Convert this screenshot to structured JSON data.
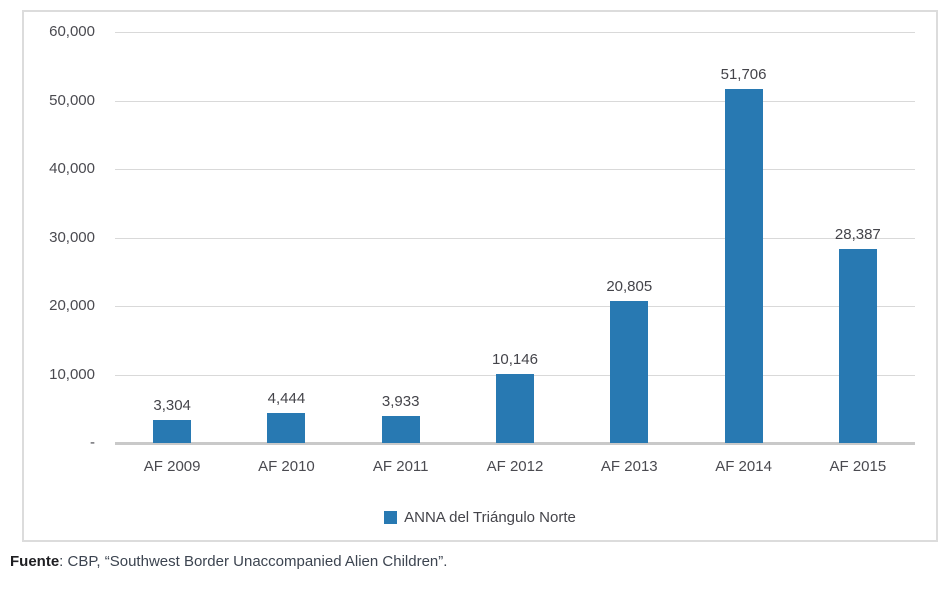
{
  "chart_data": {
    "type": "bar",
    "categories": [
      "AF 2009",
      "AF 2010",
      "AF 2011",
      "AF 2012",
      "AF 2013",
      "AF 2014",
      "AF 2015"
    ],
    "values": [
      3304,
      4444,
      3933,
      10146,
      20805,
      51706,
      28387
    ],
    "value_labels": [
      "3,304",
      "4,444",
      "3,933",
      "10,146",
      "20,805",
      "51,706",
      "28,387"
    ],
    "series": [
      {
        "name": "ANNA del Triángulo Norte",
        "values": [
          3304,
          4444,
          3933,
          10146,
          20805,
          51706,
          28387
        ]
      }
    ],
    "title": "",
    "xlabel": "",
    "ylabel": "",
    "ylim": [
      0,
      60000
    ],
    "y_tick_interval": 10000,
    "y_tick_labels": [
      "60,000",
      "50,000",
      "40,000",
      "30,000",
      "20,000",
      "10,000",
      "-"
    ],
    "grid": true,
    "legend": "ANNA del Triángulo Norte",
    "legend_position": "bottom",
    "bar_color": "#2879b2"
  },
  "source": {
    "prefix": "Fuente",
    "text": ": CBP, “Southwest Border Unaccompanied Alien Children”."
  }
}
